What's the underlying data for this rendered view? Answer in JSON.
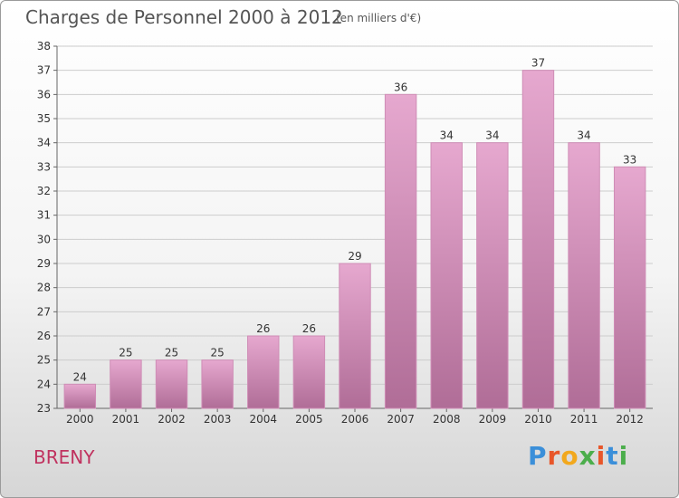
{
  "header": {
    "title": "Charges de Personnel 2000 à 2012",
    "subtitle": "(en milliers d'€)"
  },
  "footer": {
    "commune": "BRENY",
    "logo_text": "Proxiti",
    "logo_colors": [
      "#3b8fd9",
      "#e8562a",
      "#f2a81d",
      "#4cae4c",
      "#e8562a",
      "#3b8fd9",
      "#4cae4c"
    ]
  },
  "colors": {
    "bar_fill_top": "#e6a8cf",
    "bar_fill_bottom": "#b06d97",
    "bar_edge": "#cf8db6",
    "grid": "#cccccc",
    "accent": "#c0325f"
  },
  "chart_data": {
    "type": "bar",
    "categories": [
      "2000",
      "2001",
      "2002",
      "2003",
      "2004",
      "2005",
      "2006",
      "2007",
      "2008",
      "2009",
      "2010",
      "2011",
      "2012"
    ],
    "values": [
      24,
      25,
      25,
      25,
      26,
      26,
      29,
      36,
      34,
      34,
      37,
      34,
      33
    ],
    "ylim": [
      23,
      38
    ],
    "yticks": [
      23,
      24,
      25,
      26,
      27,
      28,
      29,
      30,
      31,
      32,
      33,
      34,
      35,
      36,
      37,
      38
    ],
    "grid": true,
    "xlabel": "",
    "ylabel": ""
  }
}
